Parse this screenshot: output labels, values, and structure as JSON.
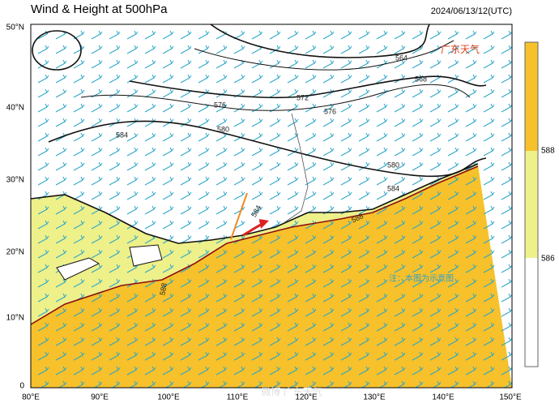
{
  "header": {
    "title": "Wind & Height at 500hPa",
    "time": "2024/06/13/12(UTC)",
    "logo": "广东天气"
  },
  "lat_labels": [
    "50°N",
    "40°N",
    "30°N",
    "20°N",
    "10°N",
    "0"
  ],
  "lon_labels": [
    "80°E",
    "90°E",
    "100°E",
    "110°E",
    "120°E",
    "130°E",
    "140°E",
    "150°E"
  ],
  "contour_labels": [
    "564",
    "568",
    "572",
    "576",
    "576",
    "580",
    "584",
    "580",
    "584",
    "584",
    "588",
    "588"
  ],
  "colorbar": {
    "labels": [
      "588",
      "586"
    ]
  },
  "note": "注：本图为示意图",
  "watermark": "微博 广东天气"
}
